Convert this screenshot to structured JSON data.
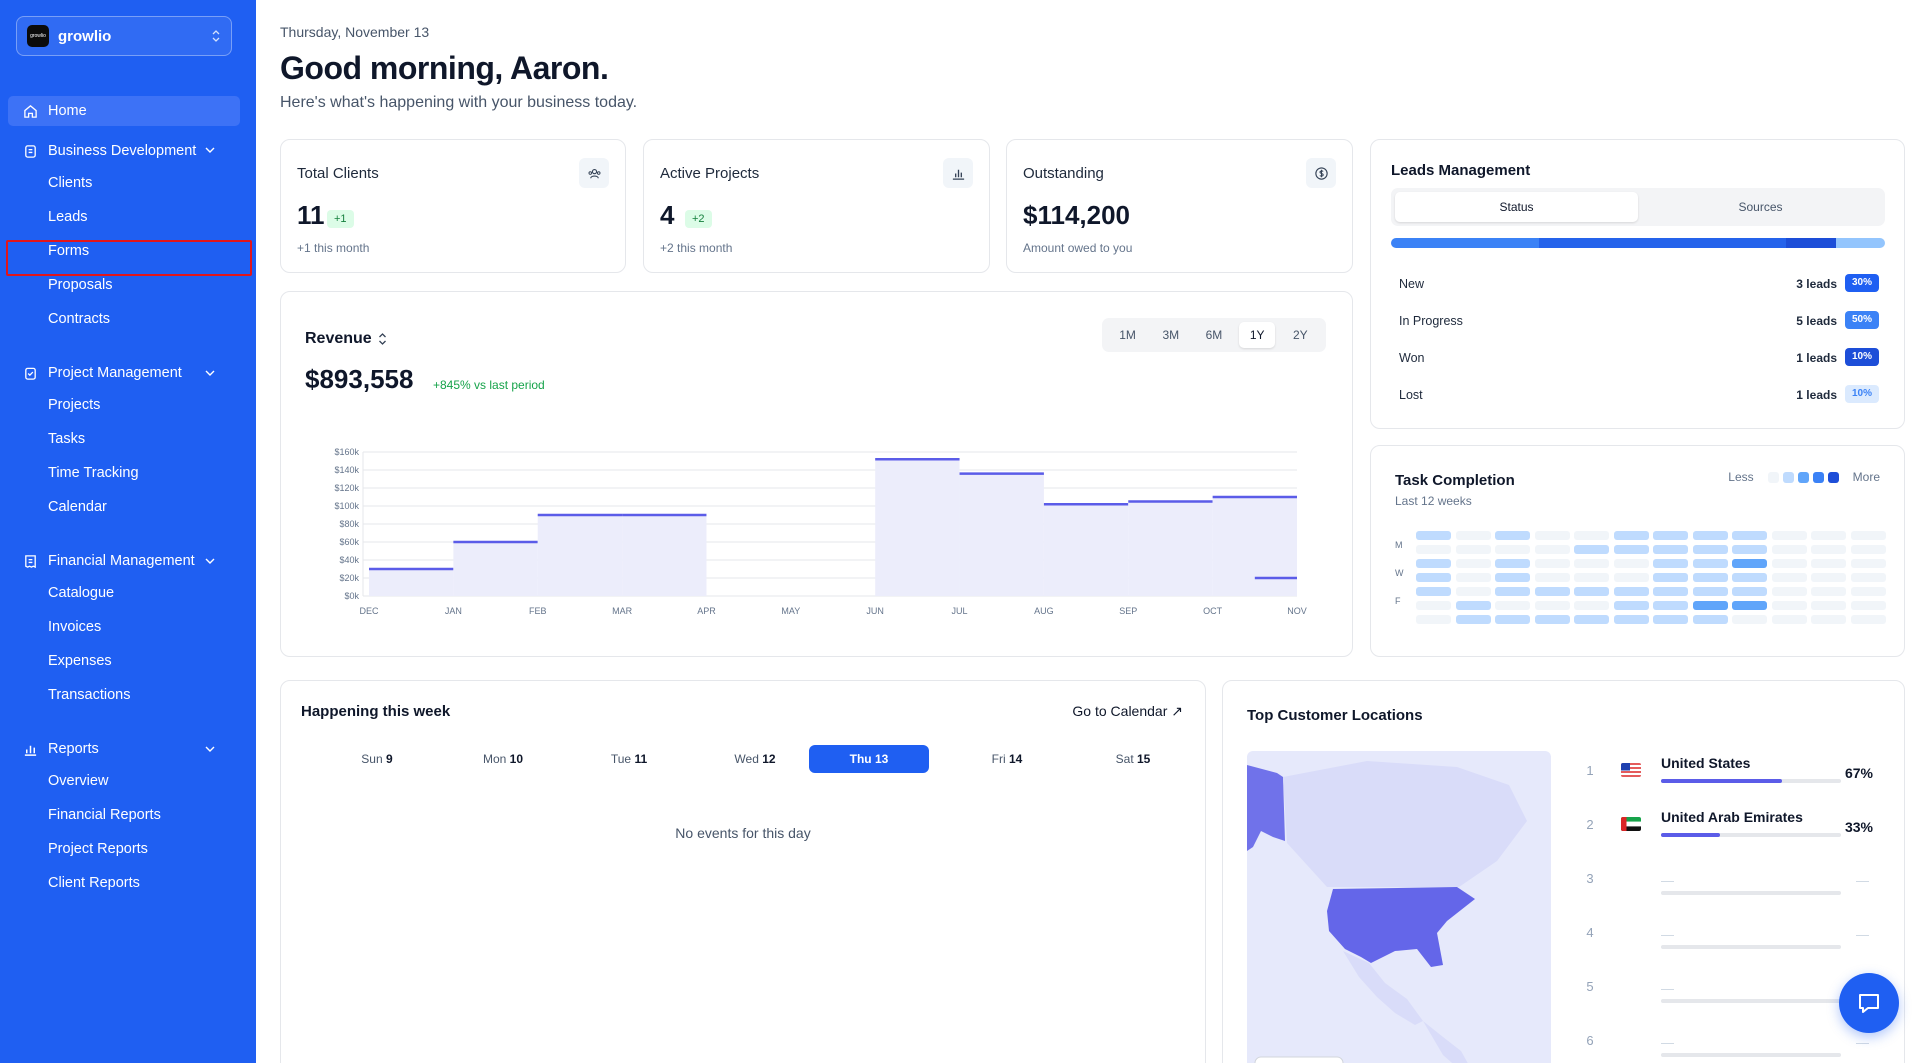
{
  "workspace": {
    "logo_text": "growlio",
    "name": "growlio"
  },
  "sidebar": {
    "home": "Home",
    "business_development": {
      "label": "Business Development",
      "items": [
        "Clients",
        "Leads",
        "Forms",
        "Proposals",
        "Contracts"
      ]
    },
    "project_management": {
      "label": "Project Management",
      "items": [
        "Projects",
        "Tasks",
        "Time Tracking",
        "Calendar"
      ]
    },
    "financial_management": {
      "label": "Financial Management",
      "items": [
        "Catalogue",
        "Invoices",
        "Expenses",
        "Transactions"
      ]
    },
    "reports": {
      "label": "Reports",
      "items": [
        "Overview",
        "Financial Reports",
        "Project Reports",
        "Client Reports"
      ]
    }
  },
  "header": {
    "date": "Thursday, November 13",
    "greeting": "Good morning, Aaron.",
    "subtitle": "Here's what's happening with your business today."
  },
  "stats": {
    "total_clients": {
      "title": "Total Clients",
      "value": "11",
      "badge": "+1",
      "note": "+1 this month"
    },
    "active_projects": {
      "title": "Active Projects",
      "value": "4",
      "badge": "+2",
      "note": "+2 this month"
    },
    "outstanding": {
      "title": "Outstanding",
      "value": "$114,200",
      "note": "Amount owed to you"
    }
  },
  "revenue": {
    "title": "Revenue",
    "value": "$893,558",
    "change": "+845% vs last period",
    "ranges": [
      "1M",
      "3M",
      "6M",
      "1Y",
      "2Y"
    ],
    "selected_range": "1Y"
  },
  "chart_data": {
    "type": "area",
    "title": "Revenue",
    "categories": [
      "DEC",
      "JAN",
      "FEB",
      "MAR",
      "APR",
      "MAY",
      "JUN",
      "JUL",
      "AUG",
      "SEP",
      "OCT",
      "NOV"
    ],
    "values": [
      30000,
      60000,
      90000,
      90000,
      0,
      0,
      152000,
      136000,
      102000,
      105000,
      110000,
      20000
    ],
    "y_ticks": [
      "$0k",
      "$20k",
      "$40k",
      "$60k",
      "$80k",
      "$100k",
      "$120k",
      "$140k",
      "$160k"
    ],
    "ylim": [
      0,
      160000
    ],
    "colors": {
      "line": "#5b5ce8",
      "fill": "#ecedfb"
    }
  },
  "leads": {
    "title": "Leads Management",
    "tabs": [
      "Status",
      "Sources"
    ],
    "selected_tab": "Status",
    "rows": [
      {
        "label": "New",
        "count": "3 leads",
        "pct": "30%",
        "share": 0.3,
        "color": "#1f5ff2"
      },
      {
        "label": "In Progress",
        "count": "5 leads",
        "pct": "50%",
        "share": 0.5,
        "color": "#3b82f6"
      },
      {
        "label": "Won",
        "count": "1 leads",
        "pct": "10%",
        "share": 0.1,
        "color": "#1d4ed8"
      },
      {
        "label": "Lost",
        "count": "1 leads",
        "pct": "10%",
        "share": 0.1,
        "color": "#bfdbfe"
      }
    ]
  },
  "tasks": {
    "title": "Task Completion",
    "subtitle": "Last 12 weeks",
    "legend_less": "Less",
    "legend_more": "More",
    "day_labels": [
      "M",
      "W",
      "F"
    ],
    "grid": [
      [
        1,
        0,
        1,
        0,
        0,
        1,
        1,
        1,
        1,
        0,
        0,
        0
      ],
      [
        0,
        0,
        0,
        0,
        1,
        1,
        1,
        1,
        1,
        0,
        0,
        0
      ],
      [
        1,
        0,
        1,
        0,
        0,
        0,
        1,
        1,
        2,
        0,
        0,
        0
      ],
      [
        1,
        0,
        1,
        0,
        0,
        0,
        1,
        1,
        1,
        0,
        0,
        0
      ],
      [
        1,
        0,
        1,
        1,
        1,
        1,
        1,
        1,
        1,
        0,
        0,
        0
      ],
      [
        0,
        1,
        0,
        0,
        0,
        1,
        1,
        2,
        2,
        0,
        0,
        0
      ],
      [
        0,
        1,
        1,
        1,
        1,
        1,
        1,
        1,
        0,
        0,
        0,
        0
      ]
    ]
  },
  "week": {
    "title": "Happening this week",
    "link": "Go to Calendar",
    "days": [
      {
        "name": "Sun",
        "num": "9"
      },
      {
        "name": "Mon",
        "num": "10"
      },
      {
        "name": "Tue",
        "num": "11"
      },
      {
        "name": "Wed",
        "num": "12"
      },
      {
        "name": "Thu",
        "num": "13"
      },
      {
        "name": "Fri",
        "num": "14"
      },
      {
        "name": "Sat",
        "num": "15"
      }
    ],
    "selected_day": "Thu",
    "empty": "No events for this day"
  },
  "locations": {
    "title": "Top Customer Locations",
    "rows": [
      {
        "rank": "1",
        "name": "United States",
        "pct": "67%",
        "share": 0.67
      },
      {
        "rank": "2",
        "name": "United Arab Emirates",
        "pct": "33%",
        "share": 0.33
      }
    ],
    "placeholder_ranks": [
      "3",
      "4",
      "5",
      "6"
    ],
    "placeholder_dash": "—"
  }
}
